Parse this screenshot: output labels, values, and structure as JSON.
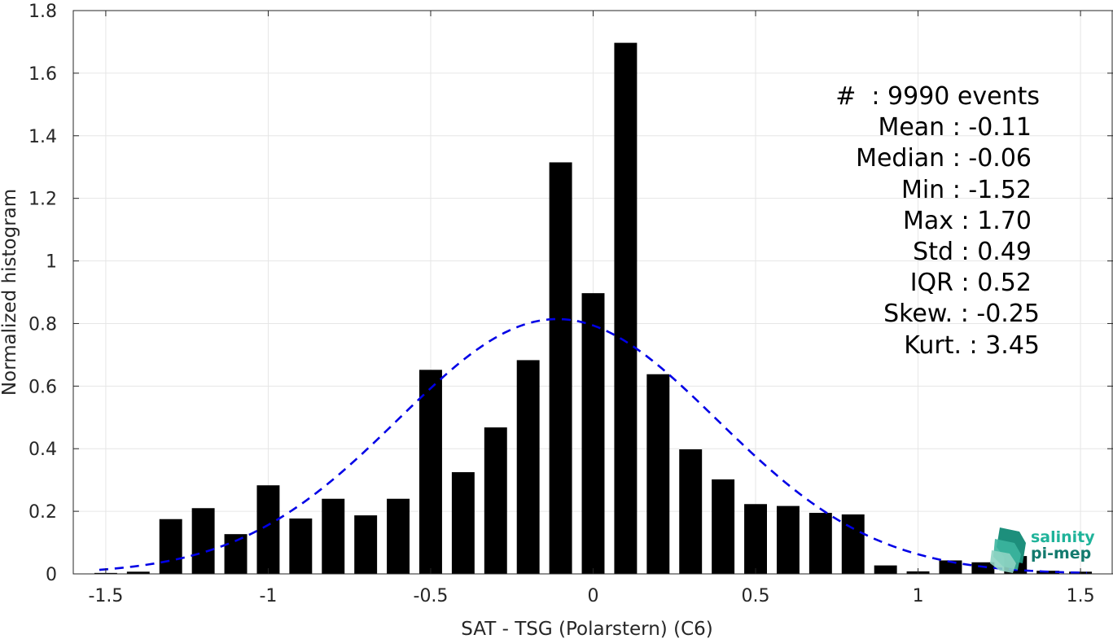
{
  "chart_data": {
    "type": "bar",
    "xlabel": "SAT - TSG (Polarstern) (C6)",
    "ylabel": "Normalized histogram",
    "xlim": [
      -1.6,
      1.6
    ],
    "ylim": [
      0,
      1.8
    ],
    "xticks": [
      -1.5,
      -1,
      -0.5,
      0,
      0.5,
      1,
      1.5
    ],
    "xtick_labels": [
      "-1.5",
      "-1",
      "-0.5",
      "0",
      "0.5",
      "1",
      "1.5"
    ],
    "yticks": [
      0,
      0.2,
      0.4,
      0.6,
      0.8,
      1,
      1.2,
      1.4,
      1.6,
      1.8
    ],
    "ytick_labels": [
      "0",
      "0.2",
      "0.4",
      "0.6",
      "0.8",
      "1",
      "1.2",
      "1.4",
      "1.6",
      "1.8"
    ],
    "grid": true,
    "bin_width": 0.1,
    "bar_color": "#000000",
    "bins": [
      {
        "x": -1.5,
        "y": 0.003
      },
      {
        "x": -1.4,
        "y": 0.007
      },
      {
        "x": -1.3,
        "y": 0.175
      },
      {
        "x": -1.2,
        "y": 0.21
      },
      {
        "x": -1.1,
        "y": 0.127
      },
      {
        "x": -1.0,
        "y": 0.283
      },
      {
        "x": -0.9,
        "y": 0.177
      },
      {
        "x": -0.8,
        "y": 0.24
      },
      {
        "x": -0.7,
        "y": 0.187
      },
      {
        "x": -0.6,
        "y": 0.24
      },
      {
        "x": -0.5,
        "y": 0.652
      },
      {
        "x": -0.4,
        "y": 0.325
      },
      {
        "x": -0.3,
        "y": 0.468
      },
      {
        "x": -0.2,
        "y": 0.683
      },
      {
        "x": -0.1,
        "y": 1.315
      },
      {
        "x": 0.0,
        "y": 0.897
      },
      {
        "x": 0.1,
        "y": 1.697
      },
      {
        "x": 0.2,
        "y": 0.638
      },
      {
        "x": 0.3,
        "y": 0.398
      },
      {
        "x": 0.4,
        "y": 0.302
      },
      {
        "x": 0.5,
        "y": 0.223
      },
      {
        "x": 0.6,
        "y": 0.217
      },
      {
        "x": 0.7,
        "y": 0.195
      },
      {
        "x": 0.8,
        "y": 0.19
      },
      {
        "x": 0.9,
        "y": 0.027
      },
      {
        "x": 1.0,
        "y": 0.008
      },
      {
        "x": 1.1,
        "y": 0.043
      },
      {
        "x": 1.2,
        "y": 0.037
      },
      {
        "x": 1.3,
        "y": 0.057
      },
      {
        "x": 1.4,
        "y": 0.01
      },
      {
        "x": 1.5,
        "y": 0.007
      }
    ],
    "fit_curve": {
      "type": "normal",
      "color": "#0000e6",
      "style": "dashed",
      "mean": -0.11,
      "std": 0.49,
      "x_range": [
        -1.52,
        1.52
      ]
    },
    "annotation_lines": [
      "#  : 9990 events",
      "Mean : -0.11",
      "Median : -0.06",
      "Min : -1.52",
      "Max : 1.70",
      "Std : 0.49",
      "IQR : 0.52",
      "Skew. : -0.25",
      "Kurt. : 3.45"
    ]
  },
  "logo": {
    "line1": "salinity",
    "line2": "pi-mep",
    "color1": "#1fb39a",
    "color2": "#137a6e"
  }
}
